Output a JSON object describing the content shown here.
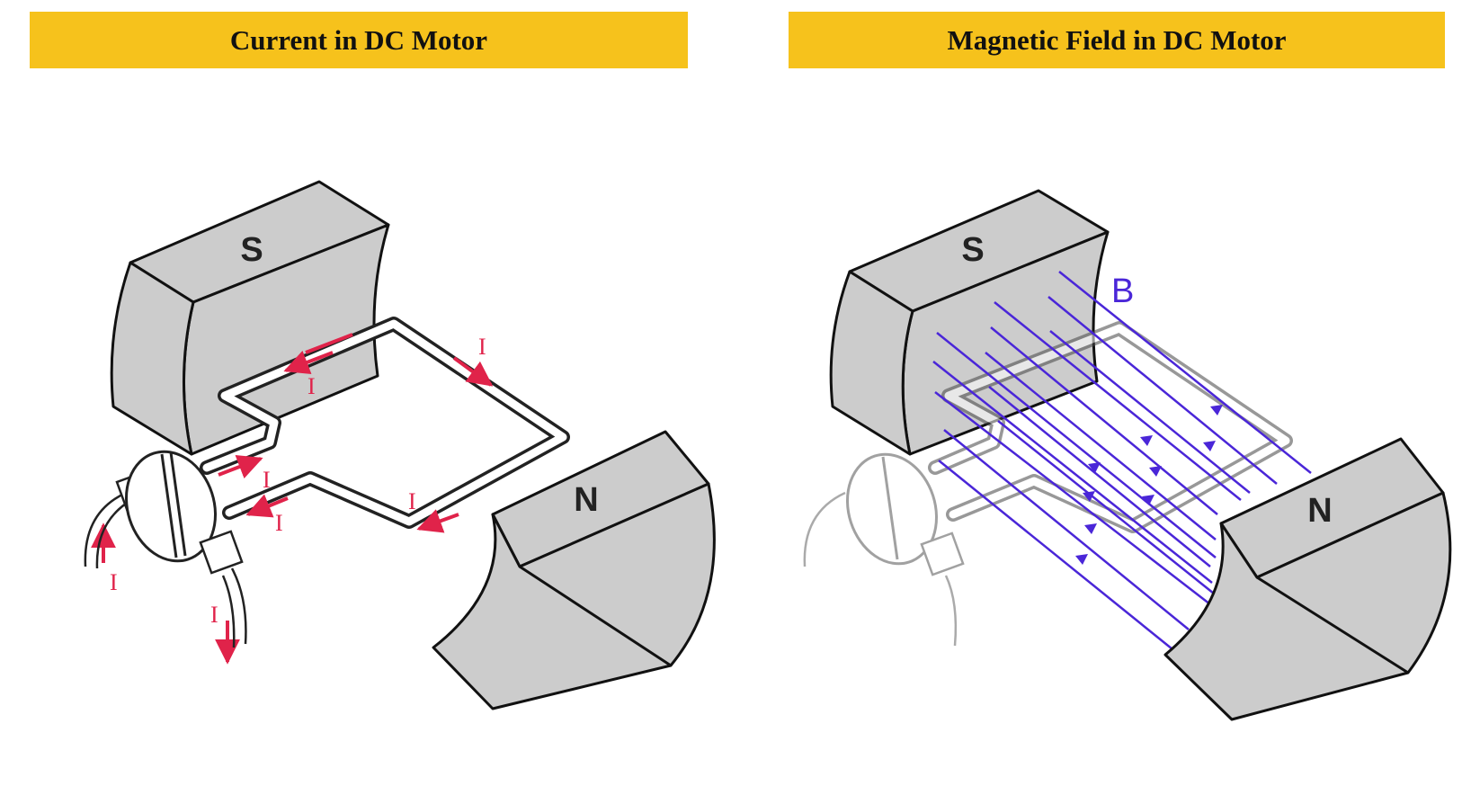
{
  "banners": {
    "left_title": "Current in DC Motor",
    "right_title": "Magnetic Field in DC Motor"
  },
  "left_panel": {
    "pole_south": "S",
    "pole_north": "N",
    "current_label": "I"
  },
  "right_panel": {
    "pole_south": "S",
    "pole_north": "N",
    "field_label": "B"
  },
  "colors": {
    "banner": "#f6c21c",
    "magnet": "#cccccc",
    "current": "#e0234a",
    "field": "#4a26d8"
  }
}
